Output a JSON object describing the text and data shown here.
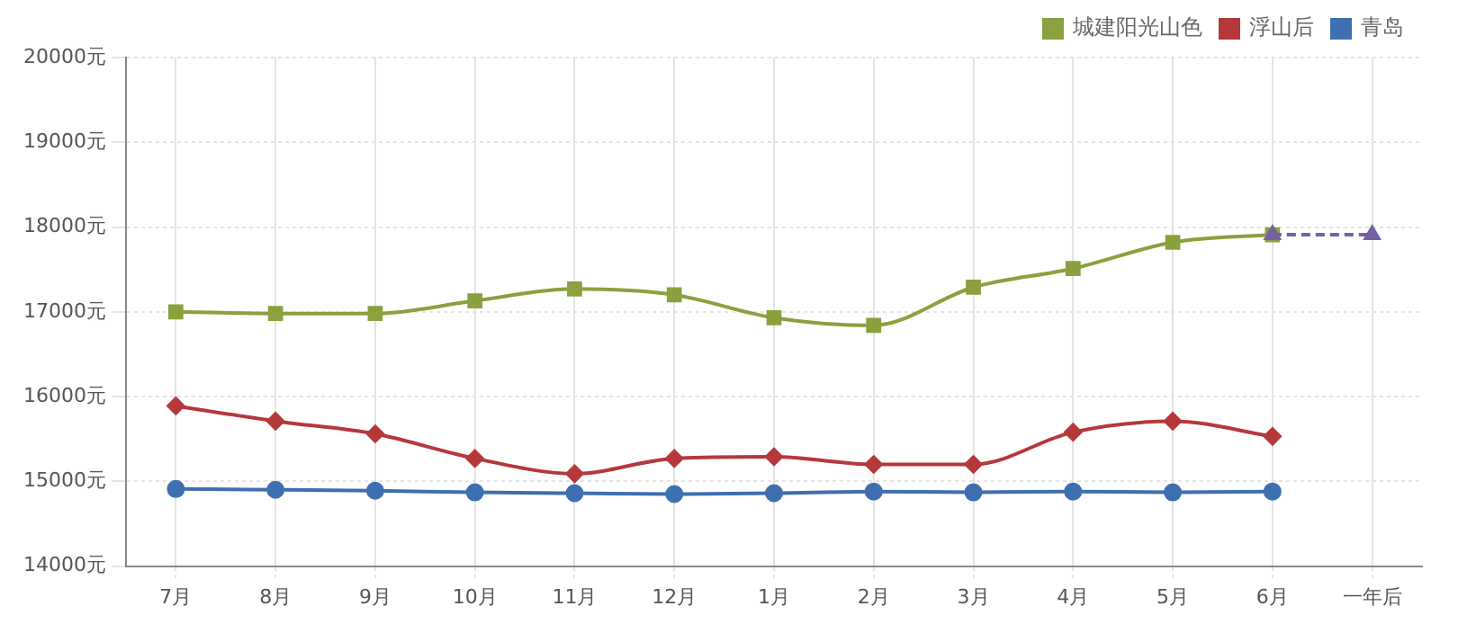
{
  "chart_data": {
    "type": "line",
    "categories": [
      "7月",
      "8月",
      "9月",
      "10月",
      "11月",
      "12月",
      "1月",
      "2月",
      "3月",
      "4月",
      "5月",
      "6月",
      "一年后"
    ],
    "series": [
      {
        "name": "城建阳光山色",
        "color": "#8ba03e",
        "marker": "square",
        "values": [
          17000,
          16980,
          16980,
          17130,
          17270,
          17200,
          16930,
          16840,
          17290,
          17510,
          17820,
          17910,
          null
        ]
      },
      {
        "name": "浮山后",
        "color": "#b5383b",
        "marker": "diamond",
        "values": [
          15890,
          15710,
          15560,
          15270,
          15090,
          15270,
          15290,
          15200,
          15200,
          15580,
          15710,
          15530,
          null
        ]
      },
      {
        "name": "青岛",
        "color": "#3e6fb0",
        "marker": "circle",
        "values": [
          14910,
          14900,
          14890,
          14870,
          14860,
          14850,
          14860,
          14880,
          14870,
          14880,
          14870,
          14880,
          null
        ]
      },
      {
        "color": "#7461a3",
        "marker": "triangle",
        "line_style": "dashed",
        "values": [
          null,
          null,
          null,
          null,
          null,
          null,
          null,
          null,
          null,
          null,
          null,
          17910,
          17910
        ]
      }
    ],
    "ylim": [
      14000,
      20000
    ],
    "yticks": [
      {
        "value": 14000,
        "label": "14000元"
      },
      {
        "value": 15000,
        "label": "15000元"
      },
      {
        "value": 16000,
        "label": "16000元"
      },
      {
        "value": 17000,
        "label": "17000元"
      },
      {
        "value": 18000,
        "label": "18000元"
      },
      {
        "value": 19000,
        "label": "19000元"
      },
      {
        "value": 20000,
        "label": "20000元"
      }
    ],
    "grid": true,
    "legend": "top right"
  }
}
